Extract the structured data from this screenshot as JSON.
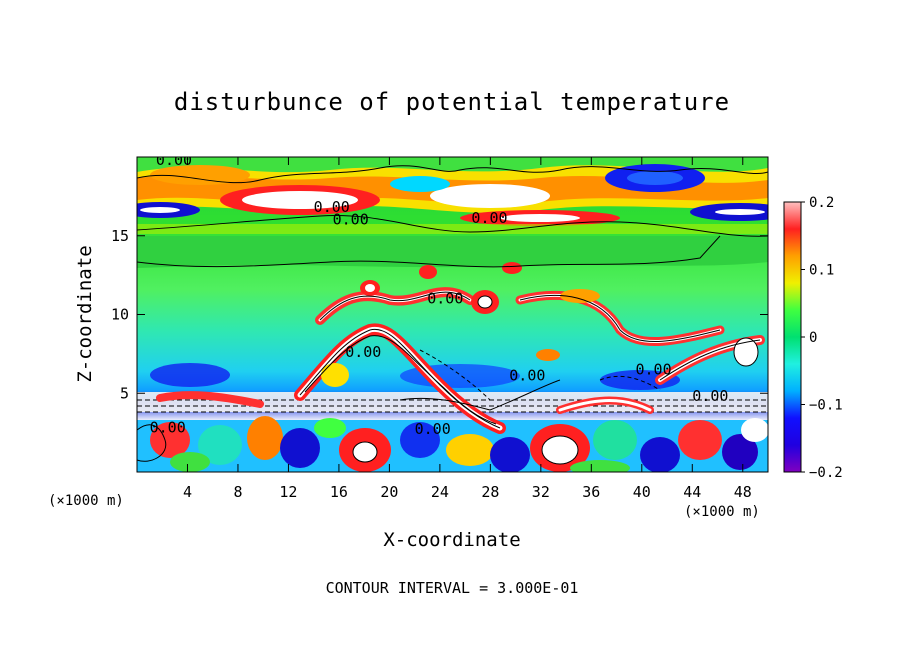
{
  "chart_data": {
    "type": "heatmap",
    "title": "disturbunce of potential temperature",
    "xlabel": "X-coordinate",
    "ylabel": "Z-coordinate",
    "x_unit_left": "(×1000 m)",
    "x_unit_right": "(×1000 m)",
    "footer": "CONTOUR INTERVAL = 3.000E-01",
    "xlim": [
      0,
      50
    ],
    "ylim": [
      0,
      20
    ],
    "x_ticks": [
      4,
      8,
      12,
      16,
      20,
      24,
      28,
      32,
      36,
      40,
      44,
      48
    ],
    "y_ticks": [
      5,
      10,
      15
    ],
    "colorbar": {
      "min": -0.2,
      "max": 0.2,
      "tick_values": [
        0.2,
        0.1,
        0,
        -0.1,
        -0.2
      ],
      "tick_labels": [
        "0.2",
        "0.1",
        "0",
        "−0.1",
        "−0.2"
      ],
      "colors": [
        "#8000c0",
        "#1010ff",
        "#00b0ff",
        "#20f0c0",
        "#00e070",
        "#40ff40",
        "#f0f000",
        "#ffa000",
        "#ff2020",
        "#ffffff"
      ]
    },
    "contour_labels": [
      {
        "text": "0.00",
        "x": 1.5,
        "z": 19.5
      },
      {
        "text": "0.00",
        "x": 14,
        "z": 16.5
      },
      {
        "text": "0.00",
        "x": 15.5,
        "z": 15.7
      },
      {
        "text": "0.00",
        "x": 26.5,
        "z": 15.8
      },
      {
        "text": "0.00",
        "x": 23,
        "z": 10.7
      },
      {
        "text": "0.00",
        "x": 16.5,
        "z": 7.3
      },
      {
        "text": "0.00",
        "x": 29.5,
        "z": 5.8
      },
      {
        "text": "0.00",
        "x": 39.5,
        "z": 6.2
      },
      {
        "text": "0.00",
        "x": 44,
        "z": 4.5
      },
      {
        "text": "0.00",
        "x": 1,
        "z": 2.5
      },
      {
        "text": "0.00",
        "x": 22,
        "z": 2.4
      }
    ]
  }
}
